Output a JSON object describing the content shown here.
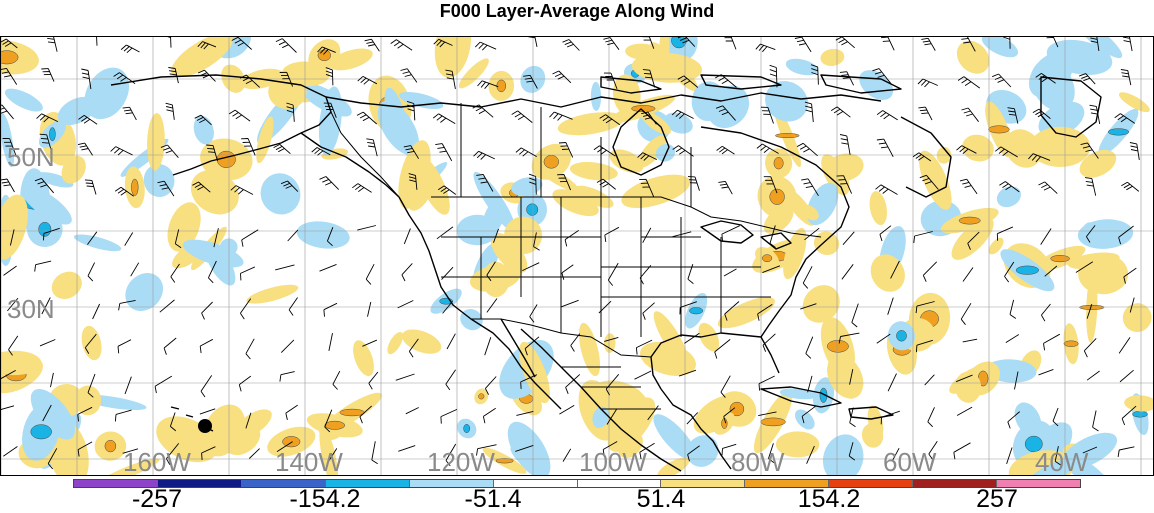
{
  "title": "F000 Layer-Average Along Wind",
  "lat_labels": [
    {
      "text": "50N",
      "lat": 50
    },
    {
      "text": "30N",
      "lat": 30
    }
  ],
  "lon_labels": [
    {
      "text": "160W",
      "lon": -160
    },
    {
      "text": "140W",
      "lon": -140
    },
    {
      "text": "120W",
      "lon": -120
    },
    {
      "text": "100W",
      "lon": -100
    },
    {
      "text": "80W",
      "lon": -80
    },
    {
      "text": "60W",
      "lon": -60
    },
    {
      "text": "40W",
      "lon": -40
    }
  ],
  "colorbar": {
    "colors": [
      "#8e44c8",
      "#101b86",
      "#3b64c8",
      "#19b3e6",
      "#aadcf5",
      "#ffffff",
      "#ffffff",
      "#f8df80",
      "#f0a020",
      "#e64010",
      "#a02020",
      "#f080b0"
    ],
    "labels": [
      "-257",
      "-154.2",
      "-51.4",
      "51.4",
      "154.2",
      "257"
    ]
  },
  "colors": {
    "light_blue": "#aadcf5",
    "blue": "#19b3e6",
    "yellow": "#f8df80",
    "orange": "#f0a020",
    "grid": "#999999",
    "coast": "#000000",
    "label_gray": "#8a8a8a"
  }
}
